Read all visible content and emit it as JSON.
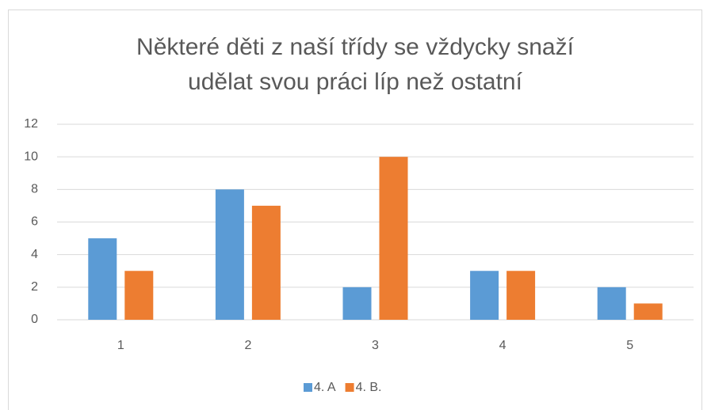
{
  "chart_data": {
    "type": "bar",
    "title": "Některé děti z naší třídy se vždycky snaží udělat svou práci líp než ostatní",
    "categories": [
      "1",
      "2",
      "3",
      "4",
      "5"
    ],
    "series": [
      {
        "name": "4. A",
        "color": "#5b9bd5",
        "values": [
          5,
          8,
          2,
          3,
          2
        ]
      },
      {
        "name": "4. B.",
        "color": "#ed7d31",
        "values": [
          3,
          7,
          10,
          3,
          1
        ]
      }
    ],
    "ylim": [
      0,
      12
    ],
    "yticks": [
      0,
      2,
      4,
      6,
      8,
      10,
      12
    ],
    "grid": true,
    "legend": "bottom"
  }
}
